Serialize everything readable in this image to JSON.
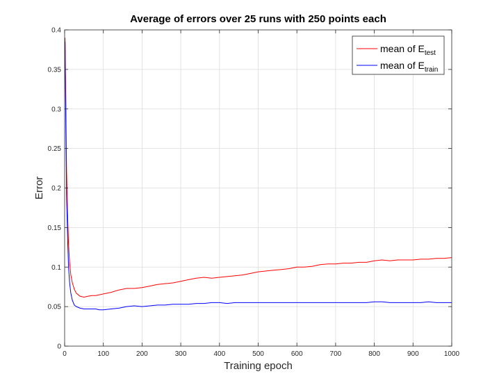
{
  "chart_data": {
    "type": "line",
    "title": "Average of errors over 25 runs with 250 points each",
    "xlabel": "Training epoch",
    "ylabel": "Error",
    "xlim": [
      0,
      1000
    ],
    "ylim": [
      0,
      0.4
    ],
    "xticks": [
      0,
      100,
      200,
      300,
      400,
      500,
      600,
      700,
      800,
      900,
      1000
    ],
    "xtick_labels": [
      "0",
      "100",
      "200",
      "300",
      "400",
      "500",
      "600",
      "700",
      "800",
      "900",
      "1000"
    ],
    "yticks": [
      0,
      0.05,
      0.1,
      0.15,
      0.2,
      0.25,
      0.3,
      0.35,
      0.4
    ],
    "ytick_labels": [
      "0",
      "0.05",
      "0.1",
      "0.15",
      "0.2",
      "0.25",
      "0.3",
      "0.35",
      "0.4"
    ],
    "grid": true,
    "legend_position": "top-right",
    "series": [
      {
        "name": "mean of E_test",
        "legend_base": "mean of E",
        "legend_sub": "test",
        "color": "#ff0000",
        "x": [
          1,
          3,
          5,
          8,
          10,
          13,
          16,
          20,
          25,
          30,
          40,
          50,
          60,
          70,
          80,
          90,
          100,
          120,
          140,
          160,
          180,
          200,
          220,
          240,
          260,
          280,
          300,
          320,
          340,
          360,
          380,
          400,
          420,
          440,
          460,
          480,
          500,
          520,
          540,
          560,
          580,
          600,
          620,
          640,
          660,
          680,
          700,
          720,
          740,
          760,
          780,
          800,
          820,
          840,
          860,
          880,
          900,
          920,
          940,
          960,
          980,
          1000
        ],
        "y": [
          0.39,
          0.31,
          0.22,
          0.16,
          0.13,
          0.105,
          0.09,
          0.08,
          0.072,
          0.067,
          0.063,
          0.062,
          0.063,
          0.064,
          0.064,
          0.065,
          0.066,
          0.068,
          0.071,
          0.073,
          0.073,
          0.074,
          0.076,
          0.078,
          0.079,
          0.08,
          0.082,
          0.084,
          0.086,
          0.087,
          0.086,
          0.087,
          0.088,
          0.089,
          0.09,
          0.092,
          0.094,
          0.095,
          0.096,
          0.097,
          0.098,
          0.1,
          0.1,
          0.101,
          0.103,
          0.104,
          0.104,
          0.105,
          0.105,
          0.106,
          0.106,
          0.108,
          0.109,
          0.108,
          0.109,
          0.109,
          0.109,
          0.11,
          0.11,
          0.111,
          0.111,
          0.112
        ]
      },
      {
        "name": "mean of E_train",
        "legend_base": "mean of E",
        "legend_sub": "train",
        "color": "#0000ff",
        "x": [
          1,
          3,
          5,
          8,
          10,
          13,
          16,
          20,
          25,
          30,
          40,
          50,
          60,
          70,
          80,
          90,
          100,
          120,
          140,
          160,
          180,
          200,
          220,
          240,
          260,
          280,
          300,
          320,
          340,
          360,
          380,
          400,
          420,
          440,
          460,
          480,
          500,
          520,
          540,
          560,
          580,
          600,
          620,
          640,
          660,
          680,
          700,
          720,
          740,
          760,
          780,
          800,
          820,
          840,
          860,
          880,
          900,
          920,
          940,
          960,
          980,
          1000
        ],
        "y": [
          0.385,
          0.28,
          0.19,
          0.13,
          0.1,
          0.08,
          0.067,
          0.058,
          0.052,
          0.05,
          0.048,
          0.047,
          0.047,
          0.047,
          0.047,
          0.046,
          0.046,
          0.047,
          0.048,
          0.05,
          0.051,
          0.05,
          0.051,
          0.052,
          0.052,
          0.053,
          0.053,
          0.053,
          0.054,
          0.054,
          0.055,
          0.055,
          0.054,
          0.055,
          0.055,
          0.055,
          0.055,
          0.055,
          0.055,
          0.055,
          0.055,
          0.055,
          0.055,
          0.055,
          0.055,
          0.055,
          0.055,
          0.055,
          0.055,
          0.055,
          0.055,
          0.056,
          0.056,
          0.055,
          0.055,
          0.055,
          0.055,
          0.055,
          0.056,
          0.055,
          0.055,
          0.055
        ]
      }
    ]
  }
}
